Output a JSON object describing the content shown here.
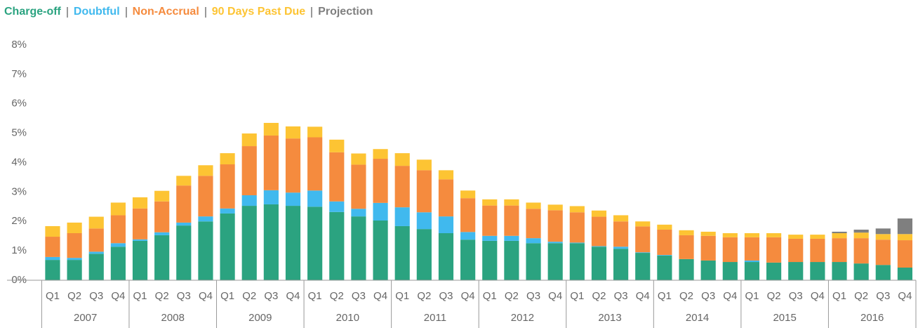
{
  "chart_data": {
    "type": "stacked_bar",
    "categories": [
      "Q1",
      "Q2",
      "Q3",
      "Q4",
      "Q1",
      "Q2",
      "Q3",
      "Q4",
      "Q1",
      "Q2",
      "Q3",
      "Q4",
      "Q1",
      "Q2",
      "Q3",
      "Q4",
      "Q1",
      "Q2",
      "Q3",
      "Q4",
      "Q1",
      "Q2",
      "Q3",
      "Q4",
      "Q1",
      "Q2",
      "Q3",
      "Q4",
      "Q1",
      "Q2",
      "Q3",
      "Q4",
      "Q1",
      "Q2",
      "Q3",
      "Q4",
      "Q1",
      "Q2",
      "Q3",
      "Q4"
    ],
    "groups": [
      "2007",
      "2008",
      "2009",
      "2010",
      "2011",
      "2012",
      "2013",
      "2014",
      "2015",
      "2016"
    ],
    "series": [
      {
        "name": "Charge-off",
        "color": "#2ba380",
        "values": [
          0.69,
          0.69,
          0.9,
          1.14,
          1.34,
          1.53,
          1.86,
          2.0,
          2.27,
          2.53,
          2.58,
          2.53,
          2.5,
          2.32,
          2.17,
          2.03,
          1.84,
          1.74,
          1.6,
          1.38,
          1.34,
          1.34,
          1.26,
          1.26,
          1.26,
          1.14,
          1.07,
          0.93,
          0.84,
          0.72,
          0.67,
          0.62,
          0.62,
          0.6,
          0.62,
          0.62,
          0.62,
          0.57,
          0.52,
          0.43
        ]
      },
      {
        "name": "Doubtful",
        "color": "#40b9ee",
        "values": [
          0.1,
          0.07,
          0.07,
          0.12,
          0.05,
          0.1,
          0.1,
          0.17,
          0.17,
          0.36,
          0.48,
          0.45,
          0.55,
          0.36,
          0.26,
          0.6,
          0.64,
          0.57,
          0.57,
          0.26,
          0.17,
          0.17,
          0.17,
          0.05,
          0.02,
          0.02,
          0.07,
          0.02,
          0.02,
          null,
          null,
          null,
          0.05,
          null,
          null,
          null,
          null,
          null,
          null,
          null
        ]
      },
      {
        "name": "Non-Accrual",
        "color": "#f58b3e",
        "values": [
          0.69,
          0.84,
          0.79,
          0.95,
          1.05,
          1.05,
          1.26,
          1.38,
          1.5,
          1.67,
          1.86,
          1.84,
          1.81,
          1.67,
          1.5,
          1.5,
          1.41,
          1.43,
          1.26,
          1.15,
          1.03,
          1.03,
          1.0,
          1.07,
          1.03,
          1.0,
          0.86,
          0.88,
          0.86,
          0.81,
          0.84,
          0.84,
          0.79,
          0.86,
          0.79,
          0.79,
          0.81,
          0.86,
          0.86,
          0.93
        ]
      },
      {
        "name": "90 Days Past Due",
        "color": "#fdc433",
        "values": [
          0.36,
          0.36,
          0.4,
          0.43,
          0.38,
          0.36,
          0.33,
          0.36,
          0.38,
          0.43,
          0.43,
          0.41,
          0.36,
          0.43,
          0.38,
          0.33,
          0.43,
          0.36,
          0.31,
          0.26,
          0.21,
          0.21,
          0.21,
          0.19,
          0.21,
          0.21,
          0.21,
          0.17,
          0.17,
          0.17,
          0.14,
          0.14,
          0.14,
          0.14,
          0.14,
          0.14,
          0.17,
          0.19,
          0.19,
          0.21
        ]
      },
      {
        "name": "Projection",
        "color": "#7f7f7f",
        "values": [
          null,
          null,
          null,
          null,
          null,
          null,
          null,
          null,
          null,
          null,
          null,
          null,
          null,
          null,
          null,
          null,
          null,
          null,
          null,
          null,
          null,
          null,
          null,
          null,
          null,
          null,
          null,
          null,
          null,
          null,
          null,
          null,
          null,
          null,
          null,
          null,
          0.05,
          0.1,
          0.19,
          0.53
        ]
      }
    ],
    "ylim": [
      0,
      8
    ],
    "yticks": [
      {
        "value": 0,
        "label": "0%"
      },
      {
        "value": 1,
        "label": "1%"
      },
      {
        "value": 2,
        "label": "2%"
      },
      {
        "value": 3,
        "label": "3%"
      },
      {
        "value": 4,
        "label": "4%"
      },
      {
        "value": 5,
        "label": "5%"
      },
      {
        "value": 6,
        "label": "6%"
      },
      {
        "value": 7,
        "label": "7%"
      },
      {
        "value": 8,
        "label": "8%"
      }
    ],
    "grid": false,
    "legend": "top-left"
  }
}
